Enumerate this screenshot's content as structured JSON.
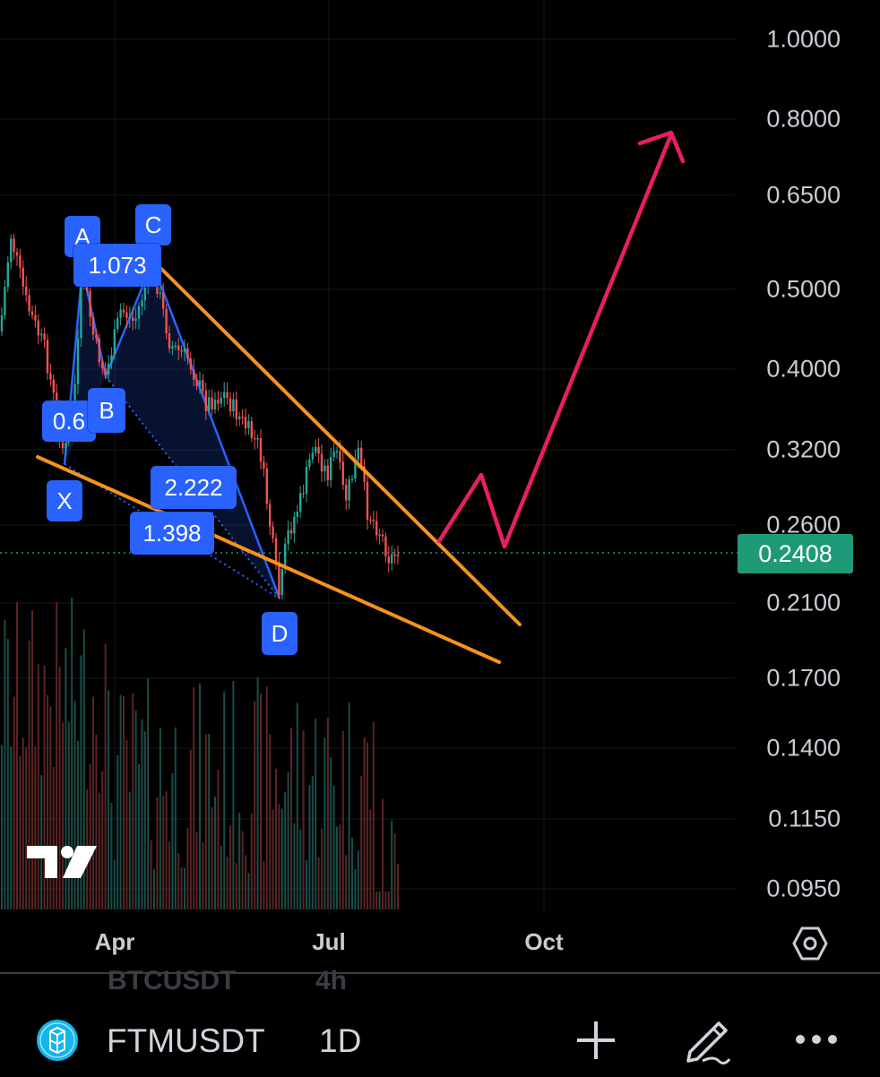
{
  "price_axis": {
    "labels": [
      "1.0000",
      "0.8000",
      "0.6500",
      "0.5000",
      "0.4000",
      "0.3200",
      "0.2600",
      "0.2100",
      "0.1700",
      "0.1400",
      "0.1150",
      "0.0950"
    ],
    "last_price": "0.2408",
    "last_price_color": "#1f9a78"
  },
  "time_axis": {
    "labels": [
      "Apr",
      "Jul",
      "Oct"
    ]
  },
  "pattern": {
    "points": [
      "X",
      "A",
      "B",
      "C",
      "D"
    ],
    "ratios": {
      "ab": "0.6",
      "bc": "1.073",
      "bd": "2.222",
      "xd": "1.398"
    },
    "color": "#2962ff"
  },
  "drawings": {
    "wedge_color": "#f7931a",
    "projection_color": "#e91e63"
  },
  "icons": {
    "logo": "tradingview-logo-icon",
    "settings": "settings-hexagon-icon",
    "coin": "fantom-coin-icon",
    "add": "plus-icon",
    "draw": "pen-drawing-icon",
    "more": "more-dots-icon"
  },
  "bottom_bar": {
    "ghost_symbol": "BTCUSDT",
    "ghost_interval": "4h",
    "symbol": "FTMUSDT",
    "interval": "1D"
  }
}
